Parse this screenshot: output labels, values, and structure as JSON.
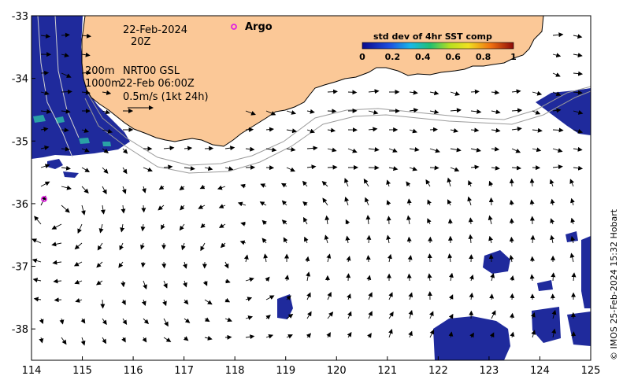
{
  "map": {
    "x_ticks": [
      "114",
      "115",
      "116",
      "117",
      "118",
      "119",
      "120",
      "121",
      "122",
      "123",
      "124",
      "125"
    ],
    "y_ticks": [
      "-33",
      "-34",
      "-35",
      "-36",
      "-37",
      "-38"
    ],
    "x_range": [
      114,
      125
    ],
    "y_range": [
      -38.5,
      -33
    ]
  },
  "annotations": {
    "date": "22-Feb-2024",
    "time": "20Z",
    "depth_200": "200m",
    "depth_1000": "1000m",
    "product": "NRT00 GSL",
    "product_time": "22-Feb 06:00Z",
    "scale": "0.5m/s (1kt 24h)"
  },
  "colorbar": {
    "title": "std dev of 4hr SST comp",
    "ticks": [
      "0",
      "0.2",
      "0.4",
      "0.6",
      "0.8",
      "1"
    ]
  },
  "legend": {
    "argo_label": "Argo"
  },
  "credit": "© IMOS 25-Feb-2024 15:32 Hobart",
  "colors": {
    "land": "#fbc897",
    "sst": "#1f2a9c",
    "argo": "#e020e0"
  }
}
